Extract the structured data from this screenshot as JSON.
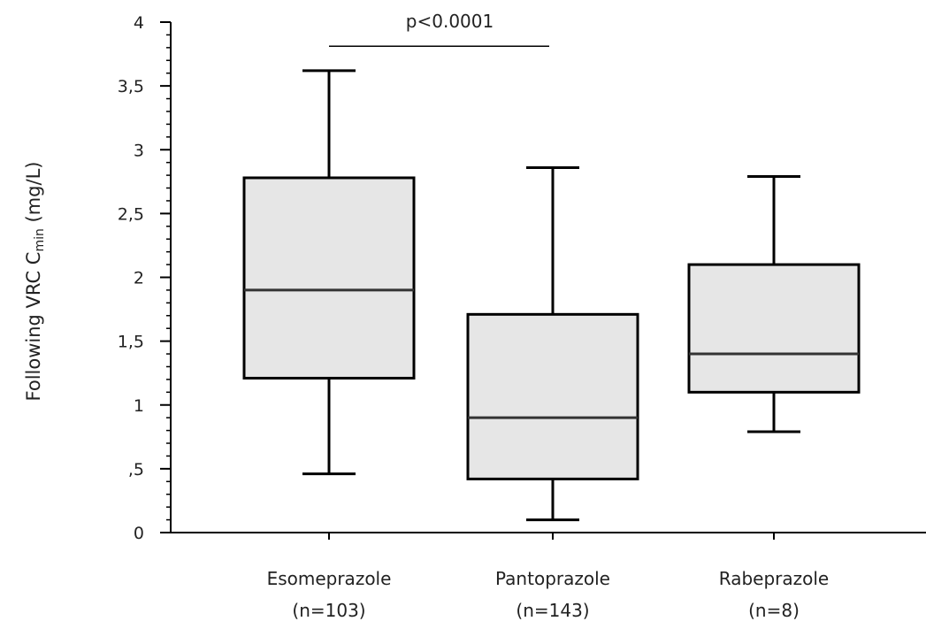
{
  "chart_data": {
    "type": "box",
    "ylabel": {
      "prefix": "Following VRC C",
      "subscript": "min",
      "suffix": " (mg/L)"
    },
    "ylim": [
      0,
      4
    ],
    "yticks": [
      {
        "value": 0,
        "label": "0"
      },
      {
        "value": 0.5,
        "label": ",5"
      },
      {
        "value": 1,
        "label": "1"
      },
      {
        "value": 1.5,
        "label": "1,5"
      },
      {
        "value": 2,
        "label": "2"
      },
      {
        "value": 2.5,
        "label": "2,5"
      },
      {
        "value": 3,
        "label": "3"
      },
      {
        "value": 3.5,
        "label": "3,5"
      },
      {
        "value": 4,
        "label": "4"
      }
    ],
    "minor_tick_step": 0.1,
    "grid": false,
    "categories": [
      {
        "name": "Esomeprazole",
        "n_label": "(n=103)"
      },
      {
        "name": "Pantoprazole",
        "n_label": "(n=143)"
      },
      {
        "name": "Rabeprazole",
        "n_label": "(n=8)"
      }
    ],
    "boxes": [
      {
        "whisker_low": 0.46,
        "q1": 1.21,
        "median": 1.9,
        "q3": 2.78,
        "whisker_high": 3.62
      },
      {
        "whisker_low": 0.1,
        "q1": 0.42,
        "median": 0.9,
        "q3": 1.71,
        "whisker_high": 2.86
      },
      {
        "whisker_low": 0.79,
        "q1": 1.1,
        "median": 1.4,
        "q3": 2.1,
        "whisker_high": 2.79
      }
    ],
    "annotations": [
      {
        "text": "p<0.0001",
        "from_category": 0,
        "to_category": 1,
        "y": 3.95
      }
    ],
    "box_fill": "#e6e6e6",
    "line_color": "#000000"
  }
}
